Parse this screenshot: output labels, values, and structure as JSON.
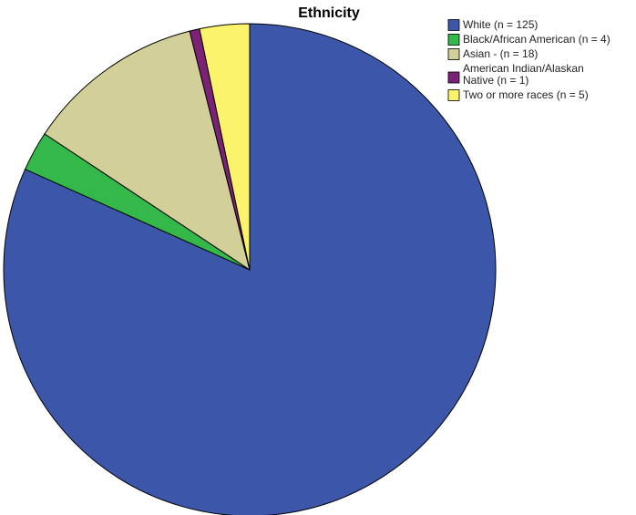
{
  "chart_data": {
    "type": "pie",
    "title": "Ethnicity",
    "legend_position": "top-right",
    "slices": [
      {
        "label": "White (n = 125)",
        "lines": [
          "White (n = 125)"
        ],
        "value": 125,
        "color": "#3c56aa"
      },
      {
        "label": "Black/African American (n = 4)",
        "lines": [
          "Black/African American (n = 4)"
        ],
        "value": 4,
        "color": "#35b84a"
      },
      {
        "label": "Asian - (n = 18)",
        "lines": [
          "Asian - (n = 18)"
        ],
        "value": 18,
        "color": "#d3cf99"
      },
      {
        "label": "American Indian/Alaskan Native (n = 1)",
        "lines": [
          "American Indian/Alaskan",
          "Native (n = 1)"
        ],
        "value": 1,
        "color": "#7b2176"
      },
      {
        "label": "Two or more races (n = 5)",
        "lines": [
          "Two or more races (n = 5)"
        ],
        "value": 5,
        "color": "#fbf36c"
      }
    ]
  }
}
